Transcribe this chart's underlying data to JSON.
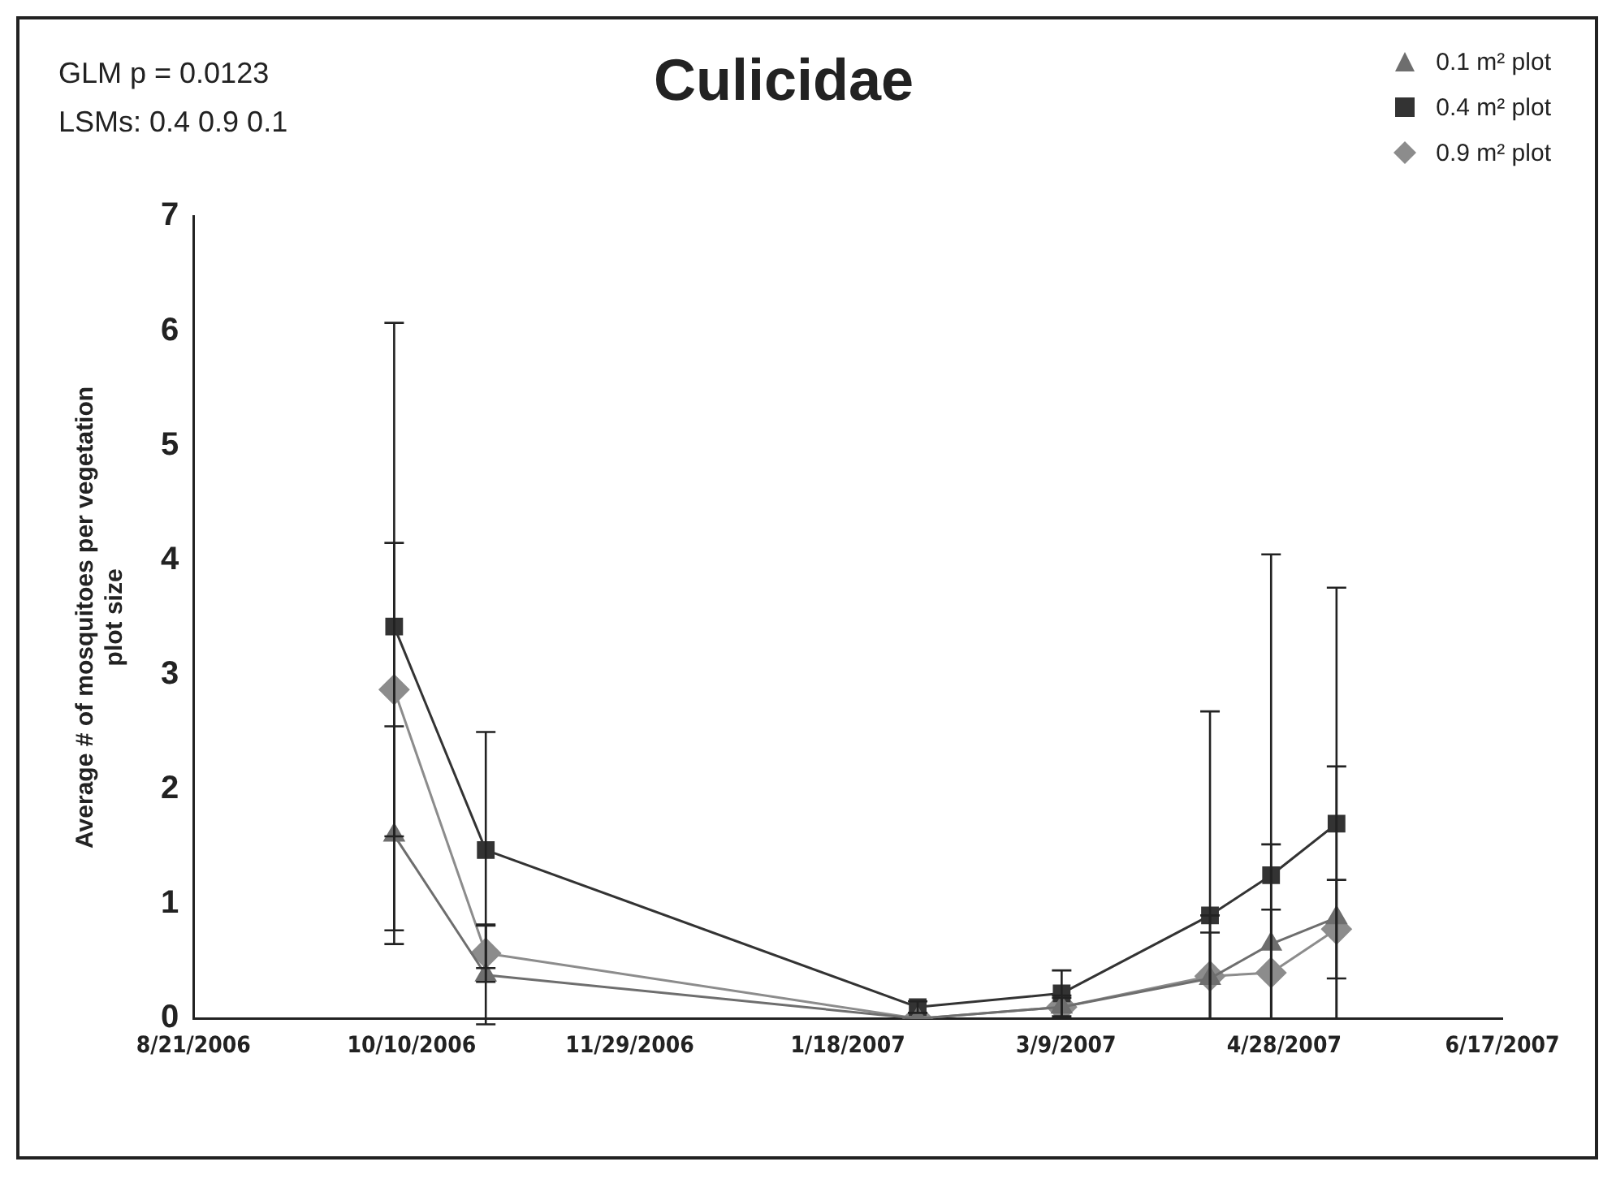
{
  "chart_data": {
    "type": "line",
    "title": "Culicidae",
    "ylabel": "Average # of mosquitoes per vegetation plot size",
    "annotations": [
      "GLM p = 0.0123",
      "LSMs: 0.4  0.9  0.1"
    ],
    "x": [
      "2006-10-06",
      "2006-10-27",
      "2007-02-03",
      "2007-03-08",
      "2007-04-11",
      "2007-04-25",
      "2007-05-10"
    ],
    "xlim": [
      "2006-08-21",
      "2007-06-17"
    ],
    "xticks": [
      {
        "value": "2006-08-21",
        "label": "8/21/2006"
      },
      {
        "value": "2006-10-10",
        "label": "10/10/2006"
      },
      {
        "value": "2006-11-29",
        "label": "11/29/2006"
      },
      {
        "value": "2007-01-18",
        "label": "1/18/2007"
      },
      {
        "value": "2007-03-09",
        "label": "3/9/2007"
      },
      {
        "value": "2007-04-28",
        "label": "4/28/2007"
      },
      {
        "value": "2007-06-17",
        "label": "6/17/2007"
      }
    ],
    "ylim": [
      0,
      7
    ],
    "yticks": [
      0,
      1,
      2,
      3,
      4,
      5,
      6,
      7
    ],
    "grid": false,
    "legend": "top right",
    "line_style": "solid",
    "series": [
      {
        "name": "0.1 m² plot",
        "color": "#6e6e6e",
        "marker": "triangle",
        "values": [
          1.6,
          0.38,
          0,
          0.1,
          0.35,
          0.65,
          0.88
        ],
        "errors": [
          0.95,
          0.43,
          null,
          [
            0,
            0.18
          ],
          [
            0,
            0.75
          ],
          [
            0,
            1.52
          ],
          [
            0,
            2.2
          ]
        ]
      },
      {
        "name": "0.4 m² plot",
        "color": "#333333",
        "marker": "square",
        "values": [
          3.42,
          1.47,
          0.1,
          0.22,
          0.9,
          1.25,
          1.7
        ],
        "errors": [
          2.65,
          1.03,
          0.05,
          0.2,
          [
            0,
            2.68
          ],
          [
            0,
            4.05
          ],
          [
            0,
            3.76
          ]
        ]
      },
      {
        "name": "0.9 m² plot",
        "color": "#8c8c8c",
        "marker": "diamond",
        "values": [
          2.87,
          0.57,
          0,
          0.1,
          0.37,
          0.4,
          0.78
        ],
        "errors": [
          1.28,
          0.25,
          null,
          [
            0,
            0.2
          ],
          [
            0,
            0.9
          ],
          [
            0,
            0.95
          ],
          0.43
        ]
      }
    ]
  }
}
